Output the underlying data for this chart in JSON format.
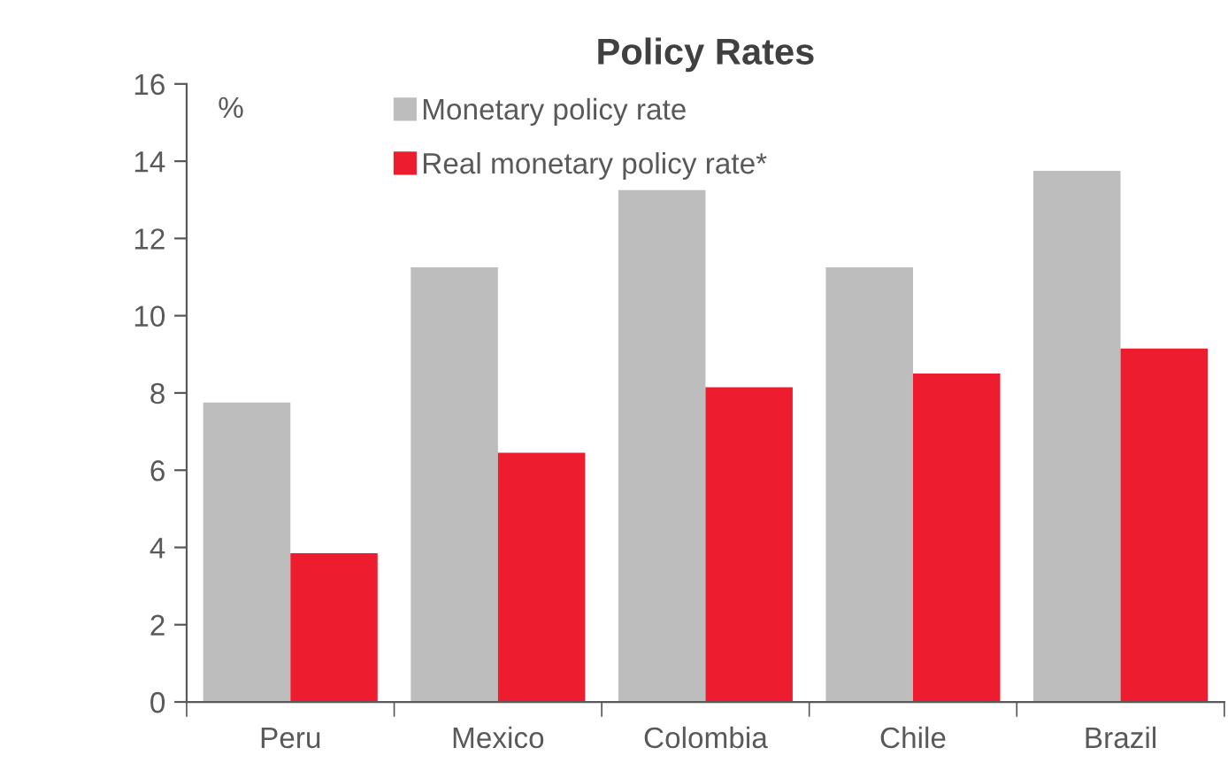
{
  "chart_data": {
    "type": "bar",
    "title": "Policy Rates",
    "ylabel": "%",
    "categories": [
      "Peru",
      "Mexico",
      "Colombia",
      "Chile",
      "Brazil"
    ],
    "series": [
      {
        "name": "Monetary policy rate",
        "color": "#bdbdbd",
        "values": [
          7.75,
          11.25,
          13.25,
          11.25,
          13.75
        ]
      },
      {
        "name": "Real monetary policy rate*",
        "color": "#ed1c2e",
        "values": [
          3.85,
          6.45,
          8.15,
          8.5,
          9.15
        ]
      }
    ],
    "ylim": [
      0,
      16
    ],
    "yticks": [
      0,
      2,
      4,
      6,
      8,
      10,
      12,
      14,
      16
    ],
    "grid": false,
    "legend": "top"
  }
}
